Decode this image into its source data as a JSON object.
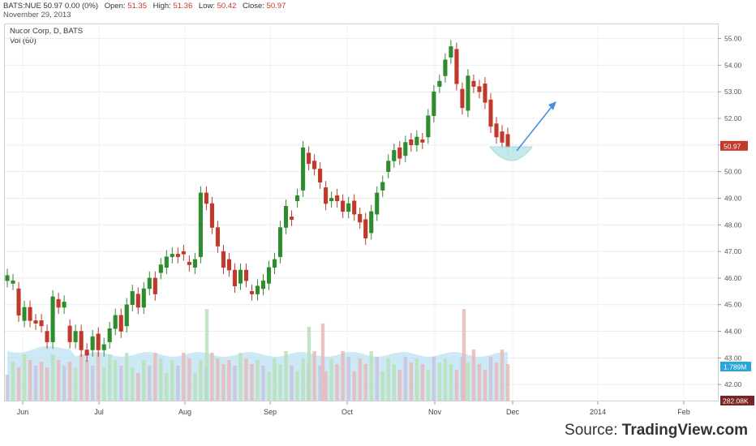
{
  "header": {
    "symbol": "BATS:NUE 50.97 0.00 (0%)",
    "open_label": "Open:",
    "open": "51.35",
    "high_label": "High:",
    "high": "51.36",
    "low_label": "Low:",
    "low": "50.42",
    "close_label": "Close:",
    "close": "50.97",
    "date": "November 29, 2013"
  },
  "legend": {
    "series": "Nucor Corp, D, BATS",
    "volume": "Vol (60)"
  },
  "source": {
    "prefix": "Source: ",
    "brand": "TradingView.com"
  },
  "badges": {
    "last_price": "50.97",
    "vol_ma": "1.789M",
    "last_vol": "282.08K"
  },
  "colors": {
    "up": "#2e8b2e",
    "down": "#c0392b",
    "vol_up": "#b8e0b8",
    "vol_down": "#e8b8b8",
    "vol_other": "#c9c3dc",
    "vol_area": "#bfe3f3",
    "arrow": "#4a90d9",
    "bowl": "#bde8e8"
  },
  "chart_data": {
    "type": "candlestick",
    "title": "Nucor Corp, D, BATS",
    "ylim": [
      41.7,
      55.2
    ],
    "y_ticks": [
      "42.00",
      "43.00",
      "44.00",
      "45.00",
      "46.00",
      "47.00",
      "48.00",
      "49.00",
      "50.00",
      "51.00",
      "52.00",
      "53.00",
      "54.00",
      "55.00"
    ],
    "x_ticks": [
      "Jun",
      "Jul",
      "Aug",
      "Sep",
      "Oct",
      "Nov",
      "Dec",
      "2014",
      "Feb"
    ],
    "candles": [
      {
        "o": 45.9,
        "c": 46.1
      },
      {
        "o": 45.8,
        "c": 45.9
      },
      {
        "o": 45.6,
        "c": 44.6
      },
      {
        "o": 44.4,
        "c": 44.9
      },
      {
        "o": 44.9,
        "c": 44.4
      },
      {
        "o": 44.4,
        "c": 44.3
      },
      {
        "o": 44.4,
        "c": 44.2
      },
      {
        "o": 44.0,
        "c": 43.6
      },
      {
        "o": 43.6,
        "c": 45.3
      },
      {
        "o": 45.2,
        "c": 44.9
      },
      {
        "o": 44.9,
        "c": 45.1
      },
      {
        "o": 44.2,
        "c": 43.6
      },
      {
        "o": 43.6,
        "c": 44.0
      },
      {
        "o": 44.0,
        "c": 43.3
      },
      {
        "o": 43.3,
        "c": 43.1
      },
      {
        "o": 43.3,
        "c": 43.8
      },
      {
        "o": 43.9,
        "c": 43.3
      },
      {
        "o": 43.3,
        "c": 43.5
      },
      {
        "o": 43.6,
        "c": 44.1
      },
      {
        "o": 44.1,
        "c": 44.6
      },
      {
        "o": 44.6,
        "c": 44.0
      },
      {
        "o": 44.2,
        "c": 45.0
      },
      {
        "o": 45.0,
        "c": 45.5
      },
      {
        "o": 45.4,
        "c": 44.9
      },
      {
        "o": 44.9,
        "c": 45.6
      },
      {
        "o": 45.6,
        "c": 46.0
      },
      {
        "o": 46.0,
        "c": 45.4
      },
      {
        "o": 46.2,
        "c": 46.5
      },
      {
        "o": 46.4,
        "c": 46.8
      },
      {
        "o": 46.8,
        "c": 46.9
      },
      {
        "o": 46.9,
        "c": 46.8
      },
      {
        "o": 47.0,
        "c": 46.9
      },
      {
        "o": 46.6,
        "c": 46.5
      },
      {
        "o": 46.4,
        "c": 46.7
      },
      {
        "o": 46.8,
        "c": 49.2
      },
      {
        "o": 49.2,
        "c": 48.8
      },
      {
        "o": 48.8,
        "c": 47.9
      },
      {
        "o": 47.9,
        "c": 47.2
      },
      {
        "o": 47.0,
        "c": 46.4
      },
      {
        "o": 46.7,
        "c": 46.3
      },
      {
        "o": 46.3,
        "c": 45.7
      },
      {
        "o": 45.8,
        "c": 46.3
      },
      {
        "o": 46.3,
        "c": 45.9
      },
      {
        "o": 45.5,
        "c": 45.4
      },
      {
        "o": 45.4,
        "c": 45.7
      },
      {
        "o": 45.6,
        "c": 45.9
      },
      {
        "o": 45.8,
        "c": 46.4
      },
      {
        "o": 46.4,
        "c": 46.7
      },
      {
        "o": 46.8,
        "c": 47.9
      },
      {
        "o": 47.9,
        "c": 48.7
      },
      {
        "o": 48.3,
        "c": 48.2
      },
      {
        "o": 48.9,
        "c": 49.1
      },
      {
        "o": 49.3,
        "c": 50.9
      },
      {
        "o": 50.7,
        "c": 50.3
      },
      {
        "o": 50.4,
        "c": 50.1
      },
      {
        "o": 50.1,
        "c": 49.6
      },
      {
        "o": 49.4,
        "c": 48.8
      },
      {
        "o": 48.9,
        "c": 49.0
      },
      {
        "o": 49.1,
        "c": 48.9
      },
      {
        "o": 48.9,
        "c": 48.5
      },
      {
        "o": 48.5,
        "c": 48.8
      },
      {
        "o": 48.9,
        "c": 48.4
      },
      {
        "o": 48.4,
        "c": 48.1
      },
      {
        "o": 48.2,
        "c": 47.5
      },
      {
        "o": 47.7,
        "c": 48.5
      },
      {
        "o": 48.4,
        "c": 49.2
      },
      {
        "o": 49.3,
        "c": 49.6
      },
      {
        "o": 50.0,
        "c": 50.4
      },
      {
        "o": 50.4,
        "c": 50.8
      },
      {
        "o": 50.9,
        "c": 50.5
      },
      {
        "o": 50.6,
        "c": 51.1
      },
      {
        "o": 51.2,
        "c": 51.0
      },
      {
        "o": 51.0,
        "c": 51.3
      },
      {
        "o": 51.2,
        "c": 51.1
      },
      {
        "o": 51.3,
        "c": 52.1
      },
      {
        "o": 52.1,
        "c": 53.0
      },
      {
        "o": 53.2,
        "c": 53.4
      },
      {
        "o": 53.6,
        "c": 54.2
      },
      {
        "o": 54.3,
        "c": 54.7
      },
      {
        "o": 54.6,
        "c": 53.3
      },
      {
        "o": 53.1,
        "c": 52.4
      },
      {
        "o": 52.3,
        "c": 53.6
      },
      {
        "o": 53.4,
        "c": 53.2
      },
      {
        "o": 53.2,
        "c": 53.0
      },
      {
        "o": 53.3,
        "c": 52.6
      },
      {
        "o": 52.7,
        "c": 51.7
      },
      {
        "o": 51.8,
        "c": 51.3
      },
      {
        "o": 51.5,
        "c": 51.1
      },
      {
        "o": 51.4,
        "c": 50.9
      }
    ],
    "volume_ma_level": 1.789,
    "annotations": [
      "arrow-up-right",
      "curved-bowl"
    ]
  }
}
